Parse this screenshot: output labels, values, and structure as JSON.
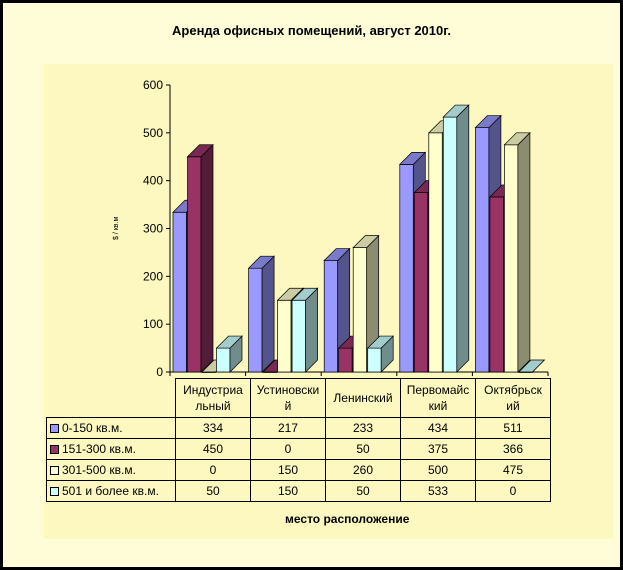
{
  "chart_data": {
    "type": "bar",
    "title": "Аренда офисных помещений, август 2010г.",
    "xlabel": "место расположение",
    "ylabel": "$ / кв.м",
    "ylim": [
      0,
      600
    ],
    "yticks": [
      "0",
      "100",
      "200",
      "300",
      "400",
      "500",
      "600"
    ],
    "categories": [
      "Индустриальный",
      "Устиновский",
      "Ленинский",
      "Первомайский",
      "Октябрьский"
    ],
    "category_labels": [
      [
        "Индустриа",
        "льный"
      ],
      [
        "Устиновски",
        "й"
      ],
      [
        "Ленинский"
      ],
      [
        "Первомайс",
        "кий"
      ],
      [
        "Октябрьск",
        "ий"
      ]
    ],
    "series": [
      {
        "name": "0-150 кв.м.",
        "values": [
          334,
          217,
          233,
          434,
          511
        ],
        "color": "#9999ff"
      },
      {
        "name": "151-300 кв.м.",
        "values": [
          450,
          0,
          50,
          375,
          366
        ],
        "color": "#993366"
      },
      {
        "name": "301-500 кв.м.",
        "values": [
          0,
          150,
          260,
          500,
          475
        ],
        "color": "#ffffcc"
      },
      {
        "name": "501 и более кв.м.",
        "values": [
          50,
          150,
          50,
          533,
          0
        ],
        "color": "#ccffff"
      }
    ],
    "table_values": [
      [
        "334",
        "217",
        "233",
        "434",
        "511"
      ],
      [
        "450",
        "0",
        "50",
        "375",
        "366"
      ],
      [
        "0",
        "150",
        "260",
        "500",
        "475"
      ],
      [
        "50",
        "150",
        "50",
        "533",
        "0"
      ]
    ],
    "grid": false,
    "legend": "data-table"
  }
}
